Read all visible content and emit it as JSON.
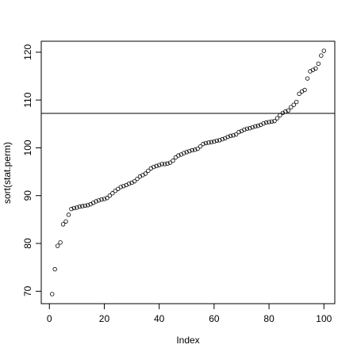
{
  "chart_data": {
    "type": "scatter",
    "x_label": "Index",
    "y_label": "sort(stat.perm)",
    "x": [
      1,
      2,
      3,
      4,
      5,
      6,
      7,
      8,
      9,
      10,
      11,
      12,
      13,
      14,
      15,
      16,
      17,
      18,
      19,
      20,
      21,
      22,
      23,
      24,
      25,
      26,
      27,
      28,
      29,
      30,
      31,
      32,
      33,
      34,
      35,
      36,
      37,
      38,
      39,
      40,
      41,
      42,
      43,
      44,
      45,
      46,
      47,
      48,
      49,
      50,
      51,
      52,
      53,
      54,
      55,
      56,
      57,
      58,
      59,
      60,
      61,
      62,
      63,
      64,
      65,
      66,
      67,
      68,
      69,
      70,
      71,
      72,
      73,
      74,
      75,
      76,
      77,
      78,
      79,
      80,
      81,
      82,
      83,
      84,
      85,
      86,
      87,
      88,
      89,
      90,
      91,
      92,
      93,
      94,
      95,
      96,
      97,
      98,
      99,
      100
    ],
    "values": [
      69.4,
      74.6,
      79.5,
      80.2,
      84.0,
      84.6,
      86.0,
      87.2,
      87.4,
      87.5,
      87.7,
      87.8,
      87.9,
      88.0,
      88.2,
      88.5,
      88.8,
      89.0,
      89.2,
      89.3,
      89.5,
      90.0,
      90.5,
      91.0,
      91.4,
      91.8,
      92.0,
      92.2,
      92.5,
      92.7,
      93.0,
      93.5,
      94.0,
      94.3,
      94.6,
      95.2,
      95.7,
      96.0,
      96.2,
      96.4,
      96.6,
      96.6,
      96.7,
      96.9,
      97.3,
      98.0,
      98.4,
      98.6,
      98.9,
      99.1,
      99.3,
      99.5,
      99.6,
      99.8,
      100.3,
      100.8,
      101.0,
      101.1,
      101.2,
      101.3,
      101.5,
      101.6,
      101.8,
      102.0,
      102.3,
      102.5,
      102.6,
      102.8,
      103.3,
      103.5,
      103.8,
      104.0,
      104.1,
      104.3,
      104.5,
      104.6,
      104.8,
      105.1,
      105.3,
      105.4,
      105.5,
      105.6,
      106.2,
      106.8,
      107.3,
      107.6,
      107.8,
      108.5,
      109.0,
      109.6,
      111.3,
      111.8,
      112.1,
      114.5,
      116.0,
      116.3,
      116.6,
      117.6,
      119.3,
      120.3
    ],
    "color": "#000000",
    "hline": 107.2,
    "xlim": [
      -2.96,
      103.96
    ],
    "xticks": [
      0,
      20,
      40,
      60,
      80,
      100
    ],
    "ylim": [
      67.4,
      122.3
    ],
    "yticks": [
      70,
      80,
      90,
      100,
      110,
      120
    ]
  }
}
